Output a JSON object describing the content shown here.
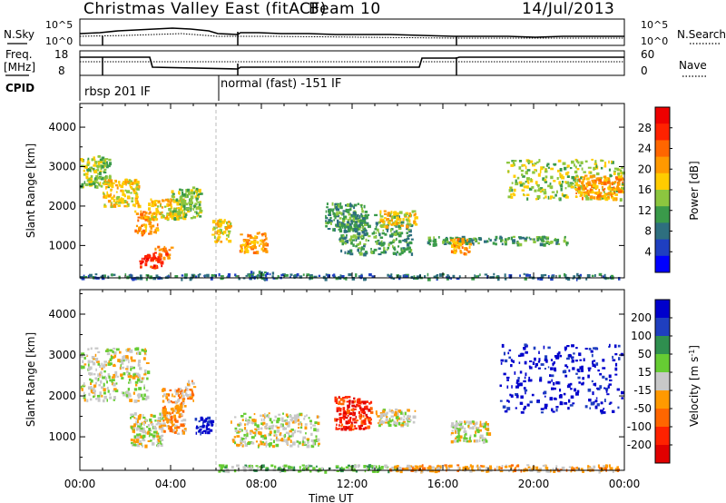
{
  "header": {
    "title": "Christmas Valley East (fitACF)",
    "beam": "Beam 10",
    "date": "14/Jul/2013"
  },
  "strip_labels": {
    "nsky": "N.Sky",
    "nsearch": "N.Search",
    "freq_line1": "Freq.",
    "freq_line2": "[MHz]",
    "nave": "Nave",
    "cpid": "CPID"
  },
  "noise_axis": {
    "left_top": "10^5",
    "left_bottom": "10^0",
    "right_top": "10^5",
    "right_bottom": "10^0"
  },
  "freq_axis": {
    "left_top": "18",
    "left_bottom": "8",
    "right_top": "60",
    "right_bottom": "0"
  },
  "cpid_segments": [
    {
      "label": "rbsp 201 IF",
      "start_hour": 0.0
    },
    {
      "label": "normal (fast) -151 IF",
      "start_hour": 6.0
    }
  ],
  "chart_data": [
    {
      "type": "heatmap",
      "panel": "power",
      "xlabel": "",
      "ylabel": "Slant Range [km]",
      "xlim": [
        0,
        24
      ],
      "ylim": [
        180,
        4600
      ],
      "x_ticks": [
        "00:00",
        "04:00",
        "08:00",
        "12:00",
        "16:00",
        "20:00",
        "00:00"
      ],
      "y_ticks": [
        1000,
        2000,
        3000,
        4000
      ],
      "colorbar": {
        "label": "Power [dB]",
        "ticks": [
          4,
          8,
          12,
          16,
          20,
          24,
          28
        ],
        "colors": [
          "#0000ff",
          "#1f3fc0",
          "#2e6f7f",
          "#3a9a4a",
          "#8cc63f",
          "#ffcc00",
          "#ff9900",
          "#ff6600",
          "#ff2200",
          "#ee0000"
        ]
      },
      "regions": [
        {
          "t0": 0.0,
          "t1": 1.3,
          "r0": 2500,
          "r1": 3300,
          "level": 4
        },
        {
          "t0": 1.0,
          "t1": 2.6,
          "r0": 2000,
          "r1": 2700,
          "level": 5
        },
        {
          "t0": 2.4,
          "t1": 3.4,
          "r0": 1300,
          "r1": 1900,
          "level": 6
        },
        {
          "t0": 2.6,
          "t1": 3.6,
          "r0": 450,
          "r1": 800,
          "level": 8
        },
        {
          "t0": 3.2,
          "t1": 4.0,
          "r0": 700,
          "r1": 1000,
          "level": 7
        },
        {
          "t0": 3.0,
          "t1": 4.6,
          "r0": 1700,
          "r1": 2200,
          "level": 5
        },
        {
          "t0": 4.0,
          "t1": 5.3,
          "r0": 1700,
          "r1": 2500,
          "level": 4
        },
        {
          "t0": 5.8,
          "t1": 6.6,
          "r0": 1100,
          "r1": 1700,
          "level": 5
        },
        {
          "t0": 7.0,
          "t1": 8.2,
          "r0": 850,
          "r1": 1350,
          "level": 6
        },
        {
          "t0": 7.4,
          "t1": 8.6,
          "r0": 180,
          "r1": 360,
          "level": 2
        },
        {
          "t0": 10.8,
          "t1": 12.6,
          "r0": 1400,
          "r1": 2100,
          "level": 3
        },
        {
          "t0": 11.4,
          "t1": 14.6,
          "r0": 800,
          "r1": 1800,
          "level": 3
        },
        {
          "t0": 13.2,
          "t1": 14.8,
          "r0": 1500,
          "r1": 1900,
          "level": 5
        },
        {
          "t0": 15.2,
          "t1": 21.5,
          "r0": 1050,
          "r1": 1250,
          "level": 3
        },
        {
          "t0": 16.3,
          "t1": 17.2,
          "r0": 800,
          "r1": 1200,
          "level": 6
        },
        {
          "t0": 18.8,
          "t1": 23.9,
          "r0": 2200,
          "r1": 3200,
          "level": 4
        },
        {
          "t0": 21.8,
          "t1": 23.9,
          "r0": 2200,
          "r1": 2800,
          "level": 6
        },
        {
          "t0": 0.0,
          "t1": 23.9,
          "r0": 180,
          "r1": 300,
          "level": 2
        }
      ]
    },
    {
      "type": "heatmap",
      "panel": "velocity",
      "xlabel": "Time UT",
      "ylabel": "Slant Range [km]",
      "xlim": [
        0,
        24
      ],
      "ylim": [
        180,
        4600
      ],
      "x_ticks": [
        "00:00",
        "04:00",
        "08:00",
        "12:00",
        "16:00",
        "20:00",
        "00:00"
      ],
      "y_ticks": [
        1000,
        2000,
        3000,
        4000
      ],
      "colorbar": {
        "label": "Velocity [m s^-1]",
        "ticks": [
          200,
          100,
          50,
          15,
          -15,
          -50,
          -100,
          -200
        ],
        "colors": [
          "#0000cc",
          "#1f3fbf",
          "#2f8f4f",
          "#66cc33",
          "#c8c8c8",
          "#ff9900",
          "#ff6600",
          "#ff2200",
          "#e00000"
        ]
      },
      "regions": [
        {
          "t0": 0.0,
          "t1": 3.0,
          "r0": 1900,
          "r1": 3200,
          "level": 4
        },
        {
          "t0": 2.2,
          "t1": 3.6,
          "r0": 800,
          "r1": 1600,
          "level": 4
        },
        {
          "t0": 3.6,
          "t1": 4.6,
          "r0": 1100,
          "r1": 2200,
          "level": 5
        },
        {
          "t0": 4.6,
          "t1": 5.0,
          "r0": 1900,
          "r1": 2400,
          "level": 5
        },
        {
          "t0": 5.0,
          "t1": 5.8,
          "r0": 1100,
          "r1": 1500,
          "level": 0
        },
        {
          "t0": 6.6,
          "t1": 10.5,
          "r0": 800,
          "r1": 1600,
          "level": 4
        },
        {
          "t0": 11.2,
          "t1": 12.8,
          "r0": 1200,
          "r1": 2000,
          "level": 7
        },
        {
          "t0": 13.0,
          "t1": 14.8,
          "r0": 1300,
          "r1": 1700,
          "level": 4
        },
        {
          "t0": 16.3,
          "t1": 18.0,
          "r0": 900,
          "r1": 1400,
          "level": 4
        },
        {
          "t0": 18.5,
          "t1": 23.9,
          "r0": 1600,
          "r1": 3300,
          "level": 0
        },
        {
          "t0": 6.0,
          "t1": 14.0,
          "r0": 180,
          "r1": 330,
          "level": 3
        },
        {
          "t0": 13.5,
          "t1": 23.9,
          "r0": 180,
          "r1": 330,
          "level": 5
        }
      ]
    }
  ]
}
